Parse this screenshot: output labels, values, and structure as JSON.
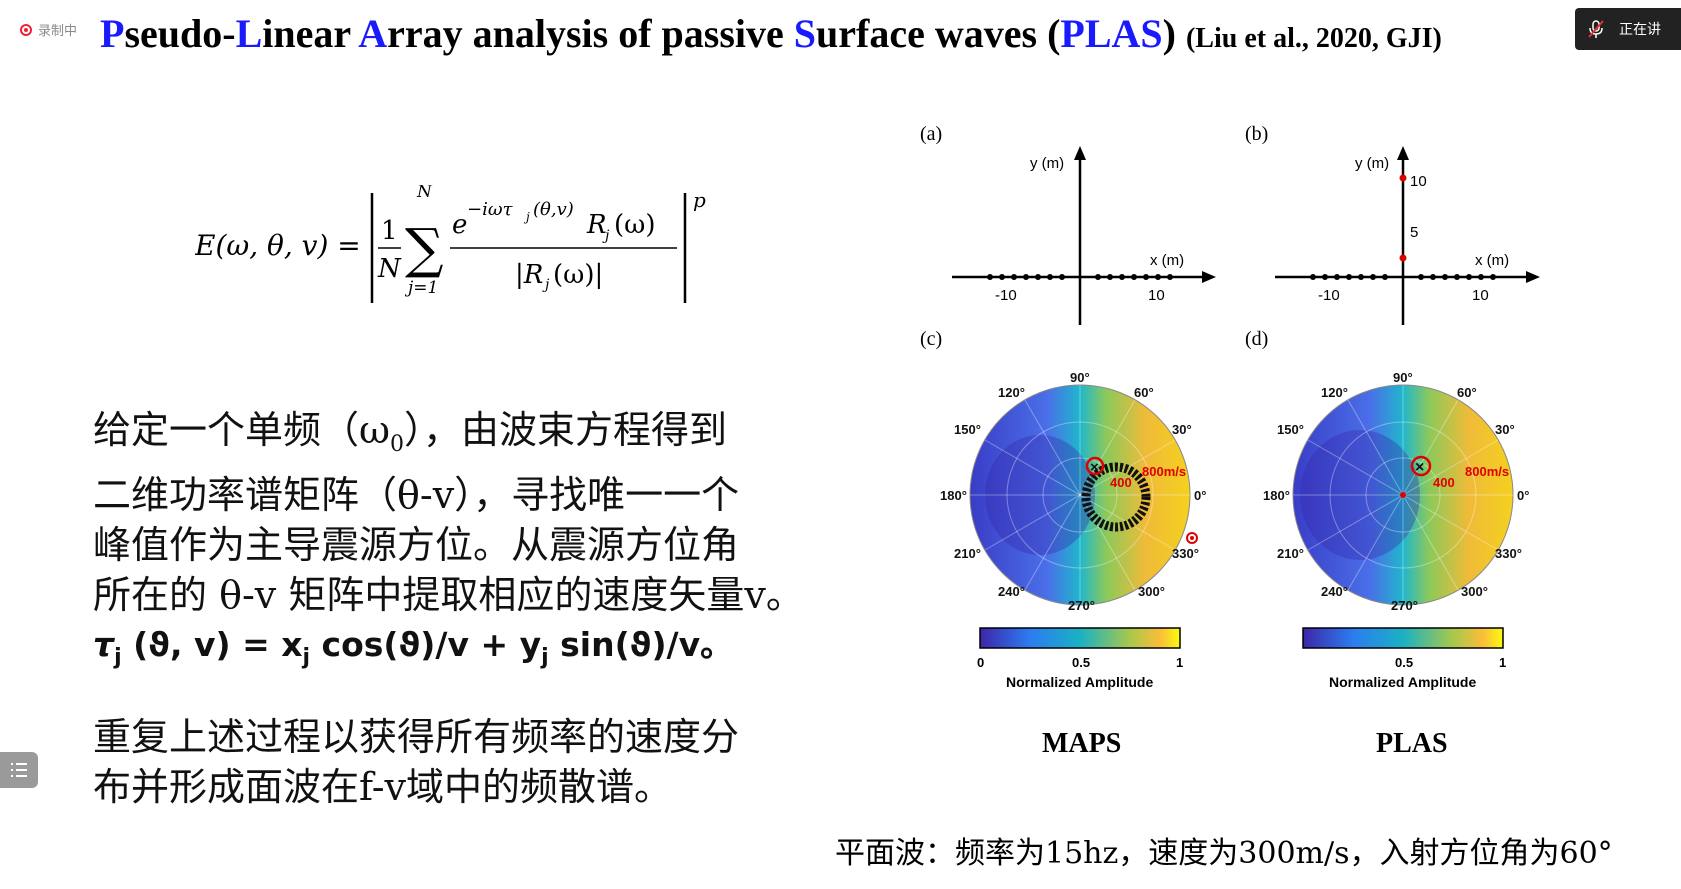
{
  "recorder": {
    "label": "录制中"
  },
  "presenter": {
    "label": "正在讲"
  },
  "title": {
    "p1": "P",
    "p1_rest": "seudo-",
    "p2": "L",
    "p2_rest": "inear ",
    "p3": "A",
    "p3_rest": "rray analysis of passive ",
    "p4": "S",
    "p4_rest": "urface waves (",
    "acronym": "PLAS",
    "close": ") ",
    "citation": "(Liu et al., 2020, GJI)"
  },
  "equation": {
    "lhs": "E(ω, θ, v) =",
    "one": "1",
    "N": "N",
    "sum_top": "N",
    "sum_bottom": "j=1",
    "numerator": "e",
    "exponent": "−iωτ",
    "exp_sub": "j",
    "exp_args": "(θ,v)",
    "R_num": "R",
    "R_sub": "j",
    "R_arg": "(ω)",
    "denominator": "|R",
    "den_sub": "j",
    "den_arg": "(ω)|",
    "power": "p"
  },
  "paragraph1": {
    "line1a": "给定一个单频（ω",
    "line1sub": "0",
    "line1b": "），由波束方程得到",
    "line2": "二维功率谱矩阵（θ-v），寻找唯一一个",
    "line3": "峰值作为主导震源方位。从震源方位角",
    "line4": "所在的  θ-v 矩阵中提取相应的速度矢量v。",
    "formula_tau": "τ",
    "formula_j1": "j",
    "formula_a": " (ϑ, v) = x",
    "formula_j2": "j",
    "formula_b": " cos(ϑ)/v + y",
    "formula_j3": "j",
    "formula_c": " sin(ϑ)/v",
    "formula_end": "。"
  },
  "paragraph2": {
    "line1": "重复上述过程以获得所有频率的速度分",
    "line2": "布并形成面波在f-v域中的频散谱。"
  },
  "figure": {
    "panel_a_label": "(a)",
    "panel_b_label": "(b)",
    "panel_c_label": "(c)",
    "panel_d_label": "(d)",
    "y_axis_label": "y (m)",
    "x_axis_label": "x (m)",
    "tick_neg10": "-10",
    "tick_10": "10",
    "tick_5": "5",
    "angles": [
      "90°",
      "60°",
      "30°",
      "0°",
      "330°",
      "300°",
      "270°",
      "240°",
      "210°",
      "180°",
      "150°",
      "120°"
    ],
    "speed_label": "800m/s",
    "inner_label": "400",
    "colorbar_title": "Normalized Amplitude",
    "cb_ticks_c": [
      "0",
      "0.5",
      "1"
    ],
    "cb_ticks_d": [
      "0.5",
      "1"
    ],
    "name_c": "MAPS",
    "name_d": "PLAS",
    "colors": {
      "red": "#e00000",
      "blue_low": "#3e26a8",
      "yellow_high": "#f9fb0e"
    }
  },
  "caption": "平面波：频率为15hz，速度为300m/s，入射方位角为60°"
}
